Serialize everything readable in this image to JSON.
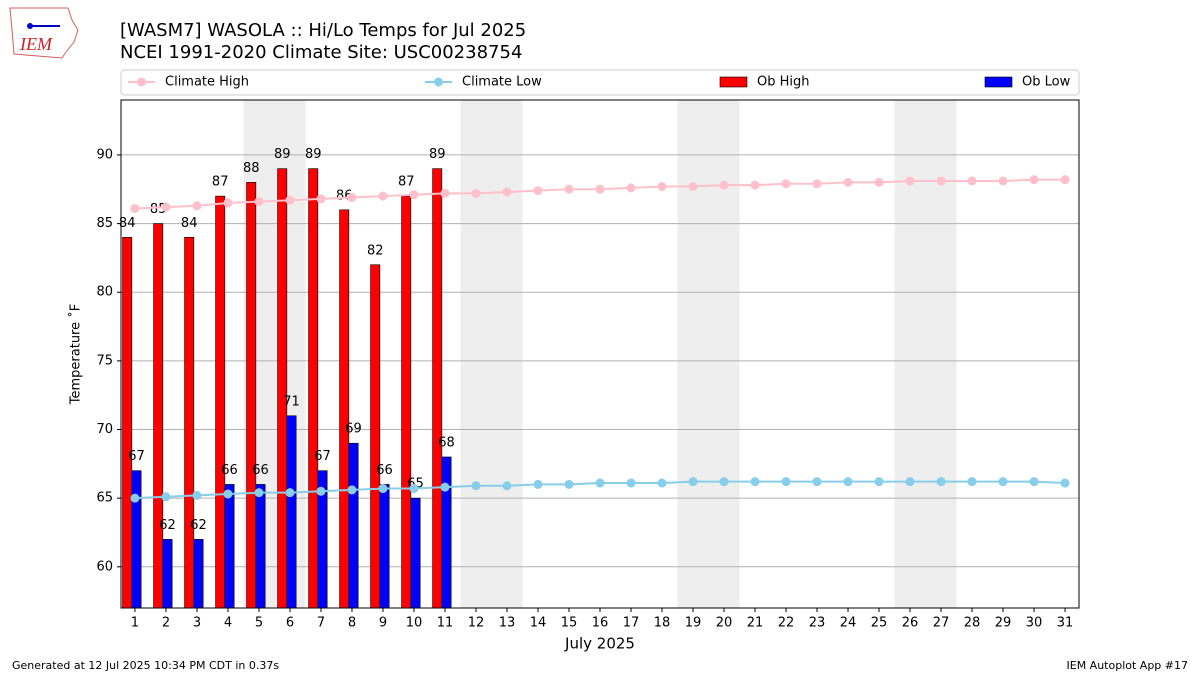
{
  "chart_data": {
    "type": "bar",
    "title": "[WASM7] WASOLA :: Hi/Lo Temps for Jul 2025",
    "subtitle": "NCEI 1991-2020 Climate Site: USC00238754",
    "xlabel": "July 2025",
    "ylabel": "Temperature ˚F",
    "footer_left": "Generated at 12 Jul 2025 10:34 PM CDT in 0.37s",
    "footer_right": "IEM Autoplot App #17",
    "logo_text": "IEM",
    "x": [
      1,
      2,
      3,
      4,
      5,
      6,
      7,
      8,
      9,
      10,
      11,
      12,
      13,
      14,
      15,
      16,
      17,
      18,
      19,
      20,
      21,
      22,
      23,
      24,
      25,
      26,
      27,
      28,
      29,
      30,
      31
    ],
    "xlim": [
      0.55,
      31.45
    ],
    "xticks": [
      1,
      2,
      3,
      4,
      5,
      6,
      7,
      8,
      9,
      10,
      11,
      12,
      13,
      14,
      15,
      16,
      17,
      18,
      19,
      20,
      21,
      22,
      23,
      24,
      25,
      26,
      27,
      28,
      29,
      30,
      31
    ],
    "ylim": [
      57,
      94
    ],
    "yticks": [
      60,
      65,
      70,
      75,
      80,
      85,
      90
    ],
    "grid": true,
    "shaded_days": [
      [
        5,
        6
      ],
      [
        12,
        13
      ],
      [
        19,
        20
      ],
      [
        26,
        27
      ]
    ],
    "shade_color": "#eeeeee",
    "legend": "top",
    "series": [
      {
        "name": "Climate High",
        "type": "line",
        "color": "#ffc0cb",
        "values": [
          86.1,
          86.2,
          86.3,
          86.5,
          86.6,
          86.7,
          86.8,
          86.9,
          87.0,
          87.1,
          87.2,
          87.2,
          87.3,
          87.4,
          87.5,
          87.5,
          87.6,
          87.7,
          87.7,
          87.8,
          87.8,
          87.9,
          87.9,
          88.0,
          88.0,
          88.1,
          88.1,
          88.1,
          88.1,
          88.2,
          88.2
        ]
      },
      {
        "name": "Climate Low",
        "type": "line",
        "color": "#87ceeb",
        "values": [
          65.0,
          65.1,
          65.2,
          65.3,
          65.4,
          65.4,
          65.5,
          65.6,
          65.7,
          65.7,
          65.8,
          65.9,
          65.9,
          66.0,
          66.0,
          66.1,
          66.1,
          66.1,
          66.2,
          66.2,
          66.2,
          66.2,
          66.2,
          66.2,
          66.2,
          66.2,
          66.2,
          66.2,
          66.2,
          66.2,
          66.1
        ]
      },
      {
        "name": "Ob High",
        "type": "bar",
        "color": "#ff0000",
        "values": [
          84,
          85,
          84,
          87,
          88,
          89,
          89,
          86,
          82,
          87,
          89,
          null,
          null,
          null,
          null,
          null,
          null,
          null,
          null,
          null,
          null,
          null,
          null,
          null,
          null,
          null,
          null,
          null,
          null,
          null,
          null
        ]
      },
      {
        "name": "Ob Low",
        "type": "bar",
        "color": "#0000ff",
        "values": [
          67,
          62,
          62,
          66,
          66,
          71,
          67,
          69,
          66,
          65,
          68,
          null,
          null,
          null,
          null,
          null,
          null,
          null,
          null,
          null,
          null,
          null,
          null,
          null,
          null,
          null,
          null,
          null,
          null,
          null,
          null
        ]
      }
    ]
  }
}
